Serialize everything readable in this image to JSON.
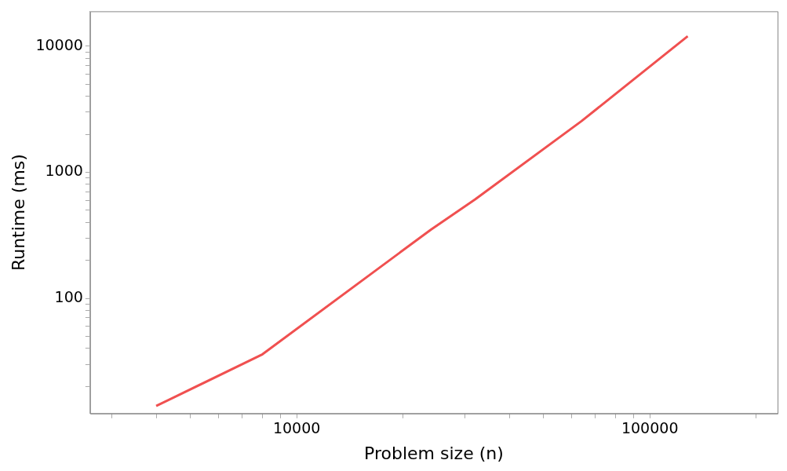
{
  "chart_data": {
    "type": "line",
    "xlabel": "Problem size (n)",
    "ylabel": "Runtime (ms)",
    "log": "xy",
    "grid": false,
    "legend": false,
    "marker": "none",
    "line_style": "solid",
    "xlim": [
      2600,
      230000
    ],
    "ylim": [
      12.2,
      18900
    ],
    "xticks": [
      {
        "value": 3000,
        "label": null
      },
      {
        "value": 4000,
        "label": null
      },
      {
        "value": 5000,
        "label": null
      },
      {
        "value": 6000,
        "label": null
      },
      {
        "value": 7000,
        "label": null
      },
      {
        "value": 8000,
        "label": null
      },
      {
        "value": 9000,
        "label": null
      },
      10000,
      {
        "value": 20000,
        "label": null
      },
      {
        "value": 30000,
        "label": null
      },
      {
        "value": 40000,
        "label": null
      },
      {
        "value": 50000,
        "label": null
      },
      {
        "value": 60000,
        "label": null
      },
      {
        "value": 70000,
        "label": null
      },
      {
        "value": 80000,
        "label": null
      },
      {
        "value": 90000,
        "label": null
      },
      100000,
      {
        "value": 200000,
        "label": null
      }
    ],
    "yticks": [
      {
        "value": 20,
        "label": null
      },
      {
        "value": 30,
        "label": null
      },
      {
        "value": 40,
        "label": null
      },
      {
        "value": 50,
        "label": null
      },
      {
        "value": 60,
        "label": null
      },
      {
        "value": 70,
        "label": null
      },
      {
        "value": 80,
        "label": null
      },
      {
        "value": 90,
        "label": null
      },
      100,
      {
        "value": 200,
        "label": null
      },
      {
        "value": 300,
        "label": null
      },
      {
        "value": 400,
        "label": null
      },
      {
        "value": 500,
        "label": null
      },
      {
        "value": 600,
        "label": null
      },
      {
        "value": 700,
        "label": null
      },
      {
        "value": 800,
        "label": null
      },
      {
        "value": 900,
        "label": null
      },
      1000,
      {
        "value": 2000,
        "label": null
      },
      {
        "value": 3000,
        "label": null
      },
      {
        "value": 4000,
        "label": null
      },
      {
        "value": 5000,
        "label": null
      },
      {
        "value": 6000,
        "label": null
      },
      {
        "value": 7000,
        "label": null
      },
      {
        "value": 8000,
        "label": null
      },
      {
        "value": 9000,
        "label": null
      },
      10000
    ],
    "series": [
      {
        "color": "#f05050",
        "x": [
          4000,
          8000,
          24000,
          32000,
          64000,
          128000
        ],
        "values": [
          14,
          36,
          351,
          609,
          2540,
          12000
        ]
      }
    ]
  }
}
